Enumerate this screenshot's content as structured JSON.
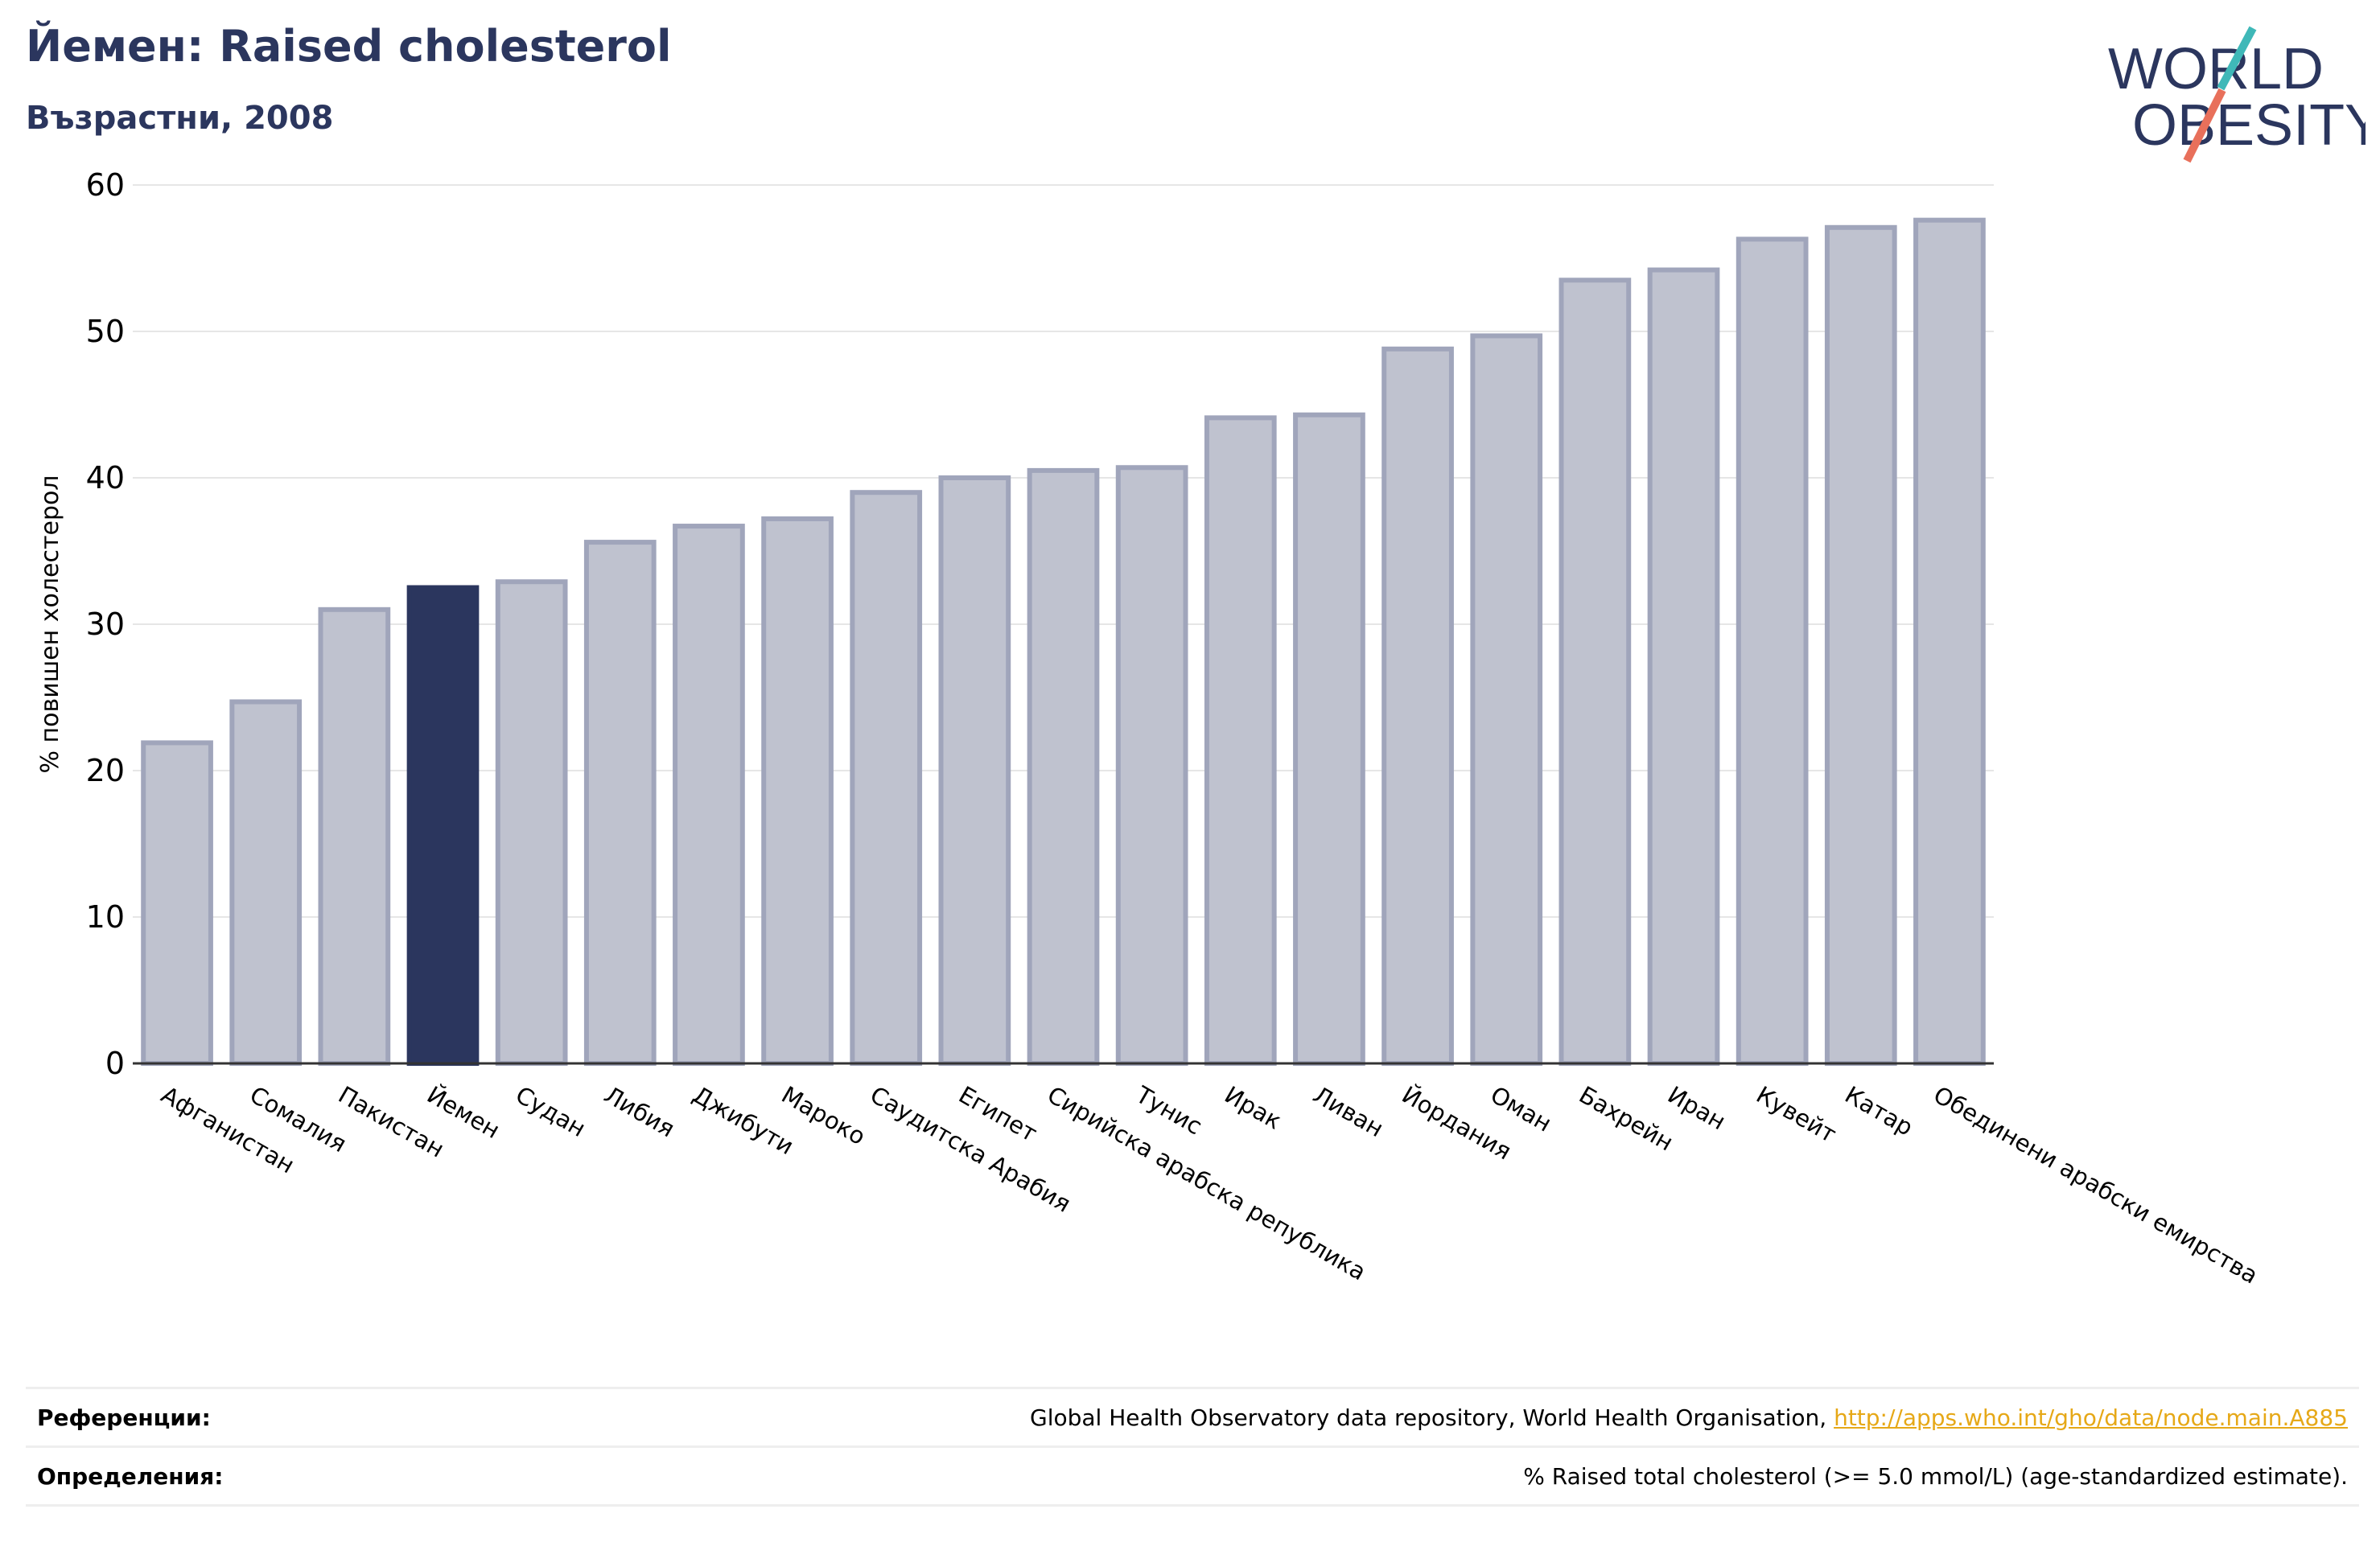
{
  "header": {
    "title": "Йемен: Raised cholesterol",
    "subtitle": "Възрастни, 2008"
  },
  "logo": {
    "line1": "WORLD",
    "line2": "OBESITY",
    "colors": {
      "text": "#2b365e",
      "slash_teal": "#3fb8b8",
      "slash_coral": "#e8705b"
    }
  },
  "chart_data": {
    "type": "bar",
    "ylabel": "% повишен холестерол",
    "xlabel": "",
    "ylim": [
      0,
      60
    ],
    "yticks": [
      0,
      10,
      20,
      30,
      40,
      50,
      60
    ],
    "grid": true,
    "highlight": "Йемен",
    "colors": {
      "bar": "#bfc2cf",
      "bar_border": "#a0a5bb",
      "highlight": "#2b365e"
    },
    "categories": [
      "Афганистан",
      "Сомалия",
      "Пакистан",
      "Йемен",
      "Судан",
      "Либия",
      "Джибути",
      "Мароко",
      "Саудитска Арабия",
      "Египет",
      "Сирийска арабска република",
      "Тунис",
      "Ирак",
      "Ливан",
      "Йордания",
      "Оман",
      "Бахрейн",
      "Иран",
      "Кувейт",
      "Катар",
      "Обединени арабски емирства"
    ],
    "values": [
      21.9,
      24.7,
      31.0,
      32.5,
      32.9,
      35.6,
      36.7,
      37.2,
      39.0,
      40.0,
      40.5,
      40.7,
      44.1,
      44.3,
      48.8,
      49.7,
      53.5,
      54.2,
      56.3,
      57.1,
      57.6
    ]
  },
  "footer": {
    "references_label": "Референции:",
    "references_text": "Global Health Observatory data repository, World Health Organisation, ",
    "references_link": "http://apps.who.int/gho/data/node.main.A885",
    "definitions_label": "Определения:",
    "definitions_text": "% Raised total cholesterol (>= 5.0 mmol/L) (age-standardized estimate)."
  }
}
